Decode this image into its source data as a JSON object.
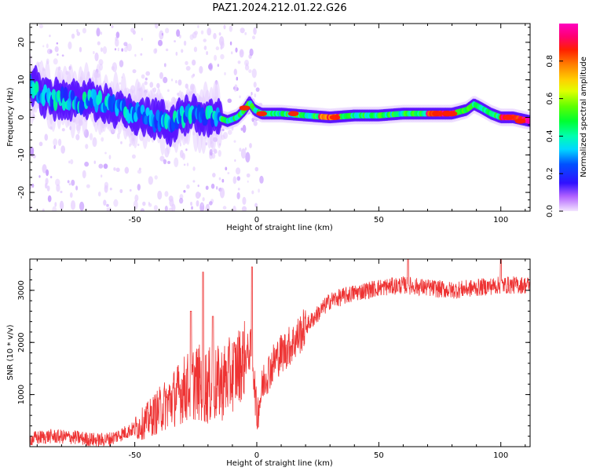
{
  "figure_title": "PAZ1.2024.212.01.22.G26",
  "chart_data": [
    {
      "type": "heatmap",
      "title": "",
      "xlabel": "Height of straight line (km)",
      "ylabel": "Frequency (Hz)",
      "xlim": [
        -93,
        112
      ],
      "ylim": [
        -25,
        25
      ],
      "xticks": [
        -50,
        0,
        50,
        100
      ],
      "yticks": [
        -20,
        -10,
        0,
        10,
        20
      ],
      "colorbar": {
        "label": "Normalized spectral amplitude",
        "range": [
          0,
          1
        ],
        "ticks": [
          0.0,
          0.2,
          0.4,
          0.6,
          0.8
        ],
        "colormap": "gist_ncar-like (purple-blue-cyan-green-yellow-red-magenta)"
      },
      "ridge": {
        "x": [
          -92,
          -88,
          -84,
          -80,
          -76,
          -72,
          -68,
          -64,
          -60,
          -56,
          -52,
          -48,
          -44,
          -40,
          -36,
          -32,
          -28,
          -24,
          -20,
          -16,
          -12,
          -8,
          -5,
          -3,
          -1,
          2,
          6,
          10,
          20,
          30,
          40,
          50,
          60,
          70,
          80,
          86,
          89,
          92,
          96,
          100,
          105,
          112
        ],
        "y": [
          8,
          6,
          5,
          5,
          4.5,
          4,
          5,
          4,
          3,
          2,
          1.5,
          1,
          0,
          -1,
          -2,
          0,
          1.5,
          0,
          0,
          0,
          -1,
          0,
          2,
          4,
          2,
          1,
          1,
          1,
          0.5,
          0,
          0.5,
          0.5,
          1,
          1,
          1,
          2,
          3.5,
          2.5,
          1,
          0,
          0,
          -1
        ]
      }
    },
    {
      "type": "line",
      "title": "",
      "xlabel": "Height of straight line (km)",
      "ylabel": "SNR (10 * v/v)",
      "xlim": [
        -93,
        112
      ],
      "ylim": [
        0,
        3600
      ],
      "xticks": [
        -50,
        0,
        50,
        100
      ],
      "yticks": [
        1000,
        2000,
        3000
      ],
      "color": "#ee3333",
      "x": [
        -93,
        -85,
        -75,
        -65,
        -60,
        -55,
        -50,
        -45,
        -40,
        -35,
        -30,
        -25,
        -20,
        -15,
        -10,
        -5,
        -2,
        0,
        3,
        8,
        15,
        20,
        25,
        30,
        40,
        50,
        60,
        70,
        80,
        90,
        100,
        112
      ],
      "y": [
        150,
        200,
        180,
        120,
        150,
        250,
        350,
        500,
        700,
        900,
        1100,
        1250,
        1150,
        1200,
        1400,
        1700,
        1900,
        600,
        1300,
        1700,
        2000,
        2300,
        2550,
        2800,
        2950,
        3050,
        3100,
        3050,
        3000,
        3050,
        3100,
        3100
      ],
      "spikes": [
        {
          "x": -22,
          "y": 3350
        },
        {
          "x": -2,
          "y": 3450
        },
        {
          "x": -27,
          "y": 2600
        },
        {
          "x": -18,
          "y": 2500
        },
        {
          "x": 62,
          "y": 3600
        },
        {
          "x": 100,
          "y": 3600
        }
      ]
    }
  ]
}
